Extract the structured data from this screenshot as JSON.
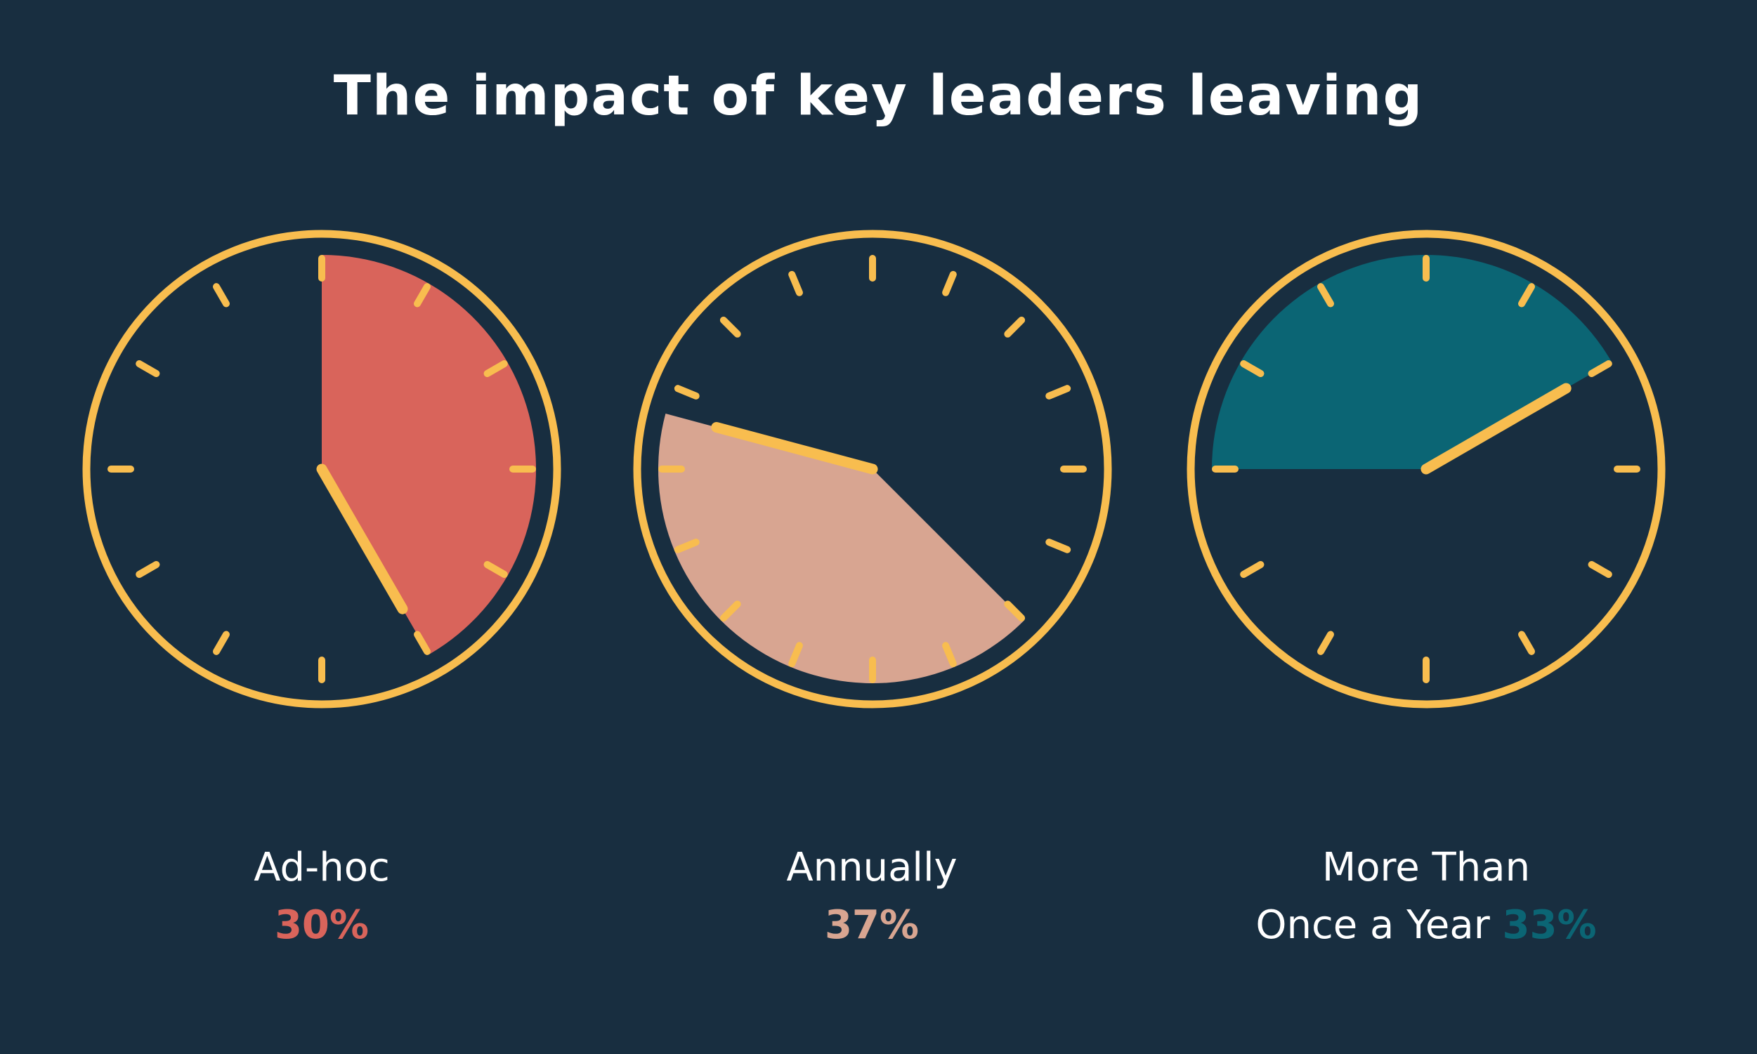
{
  "title": "The impact of key leaders leaving",
  "colors": {
    "background": "#182e40",
    "ring": "#f8bd4f",
    "hand": "#f8bd4f",
    "text": "#ffffff"
  },
  "chart_data": {
    "type": "pie",
    "title": "The impact of key leaders leaving",
    "categories": [
      "Ad-hoc",
      "Annually",
      "More Than Once a Year"
    ],
    "values": [
      30,
      37,
      33
    ],
    "unit": "%",
    "series": [
      {
        "name": "Ad-hoc",
        "label_lines": [
          "Ad-hoc"
        ],
        "value": 30,
        "value_label": "30%",
        "color": "#d9645b",
        "start_deg": 0,
        "sweep_deg": 150
      },
      {
        "name": "Annually",
        "label_lines": [
          "Annually"
        ],
        "value": 37,
        "value_label": "37%",
        "color": "#d8a591",
        "start_deg": 135,
        "sweep_deg": 150
      },
      {
        "name": "More Than Once a Year",
        "label_lines": [
          "More Than",
          "Once a Year"
        ],
        "value": 33,
        "value_label": "33%",
        "color": "#0b6574",
        "start_deg": 270,
        "sweep_deg": 150
      }
    ]
  }
}
